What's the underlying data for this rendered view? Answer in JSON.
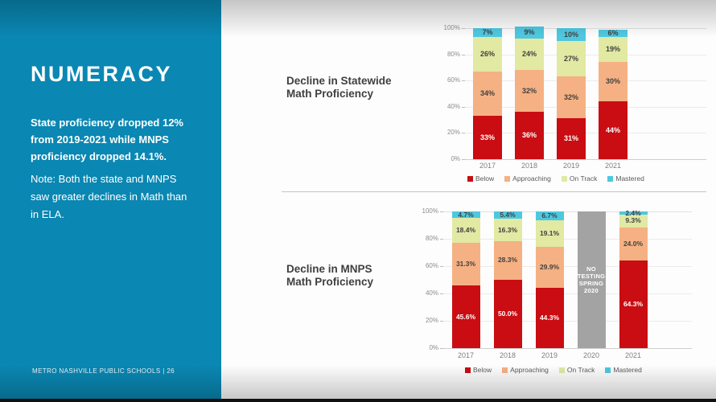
{
  "sidebar": {
    "title": "NUMERACY",
    "highlight": "State proficiency dropped 12%\nfrom 2019-2021 while MNPS\nproficiency dropped 14.1%.",
    "note": "Note: Both the state and MNPS\nsaw greater declines in Math than\nin ELA.",
    "footer": "METRO NASHVILLE PUBLIC SCHOOLS  |  26"
  },
  "colors": {
    "sidebar_teal": "#0A87B2",
    "below_red": "#C90D12",
    "approaching_orange": "#F5B183",
    "on_track_green": "#E1E9A3",
    "mastered_cyan": "#4EC8E0",
    "no_testing_gray": "#A3A3A3"
  },
  "chart_data": [
    {
      "type": "bar",
      "stacked": true,
      "title": "Decline in Statewide\nMath Proficiency",
      "categories": [
        "2017",
        "2018",
        "2019",
        "2021"
      ],
      "series": [
        {
          "name": "Below",
          "color": "#C90D12",
          "label_color": "#FFFFFF",
          "values": [
            33,
            36,
            31,
            44
          ],
          "labels": [
            "33%",
            "36%",
            "31%",
            "44%"
          ]
        },
        {
          "name": "Approaching",
          "color": "#F5B183",
          "label_color": "#404040",
          "values": [
            34,
            32,
            32,
            30
          ],
          "labels": [
            "34%",
            "32%",
            "32%",
            "30%"
          ]
        },
        {
          "name": "On Track",
          "color": "#E1E9A3",
          "label_color": "#404040",
          "values": [
            26,
            24,
            27,
            19
          ],
          "labels": [
            "26%",
            "24%",
            "27%",
            "19%"
          ]
        },
        {
          "name": "Mastered",
          "color": "#4EC8E0",
          "label_color": "#404040",
          "values": [
            7,
            9,
            10,
            6
          ],
          "labels": [
            "7%",
            "9%",
            "10%",
            "6%"
          ]
        }
      ],
      "yticks": [
        "0%",
        "20%",
        "40%",
        "60%",
        "80%",
        "100%"
      ],
      "ylim": [
        0,
        100
      ],
      "grid": true,
      "legend_position": "bottom"
    },
    {
      "type": "bar",
      "stacked": true,
      "title": "Decline in MNPS\nMath Proficiency",
      "categories": [
        "2017",
        "2018",
        "2019",
        "2020",
        "2021"
      ],
      "series": [
        {
          "name": "Below",
          "color": "#C90D12",
          "label_color": "#FFFFFF",
          "values": [
            45.6,
            50.0,
            44.3,
            null,
            64.3
          ],
          "labels": [
            "45.6%",
            "50.0%",
            "44.3%",
            null,
            "64.3%"
          ]
        },
        {
          "name": "Approaching",
          "color": "#F5B183",
          "label_color": "#404040",
          "values": [
            31.3,
            28.3,
            29.9,
            null,
            24.0
          ],
          "labels": [
            "31.3%",
            "28.3%",
            "29.9%",
            null,
            "24.0%"
          ]
        },
        {
          "name": "On Track",
          "color": "#E1E9A3",
          "label_color": "#404040",
          "values": [
            18.4,
            16.3,
            19.1,
            null,
            9.3
          ],
          "labels": [
            "18.4%",
            "16.3%",
            "19.1%",
            null,
            "9.3%"
          ]
        },
        {
          "name": "Mastered",
          "color": "#4EC8E0",
          "label_color": "#404040",
          "values": [
            4.7,
            5.4,
            6.7,
            null,
            2.4
          ],
          "labels": [
            "4.7%",
            "5.4%",
            "6.7%",
            null,
            "2.4%"
          ]
        }
      ],
      "no_data": {
        "index": 3,
        "category": "2020",
        "label": "NO\nTESTING\nSPRING\n2020",
        "color": "#A3A3A3"
      },
      "yticks": [
        "0%",
        "20%",
        "40%",
        "60%",
        "80%",
        "100%"
      ],
      "ylim": [
        0,
        100
      ],
      "grid": true,
      "legend_position": "bottom"
    }
  ]
}
